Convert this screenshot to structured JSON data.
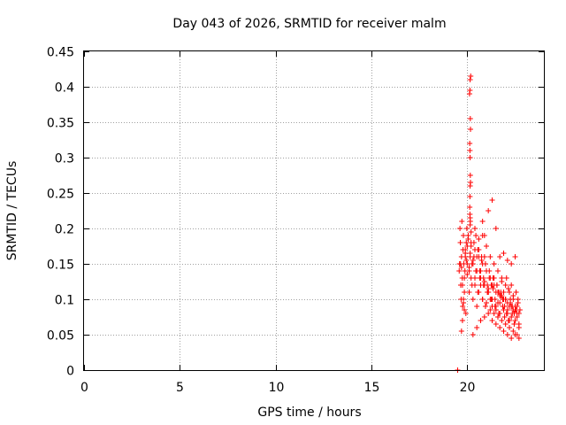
{
  "chart_data": {
    "type": "scatter",
    "title": "Day 043 of 2026, SRMTID for receiver malm",
    "xlabel": "GPS time / hours",
    "ylabel": "SRMTID / TECUs",
    "xlim": [
      0,
      24
    ],
    "ylim": [
      0,
      0.45
    ],
    "xticks": [
      0,
      5,
      10,
      15,
      20
    ],
    "xtick_labels": [
      "0",
      "5",
      "10",
      "15",
      "20"
    ],
    "yticks": [
      0,
      0.05,
      0.1,
      0.15,
      0.2,
      0.25,
      0.3,
      0.35,
      0.4,
      0.45
    ],
    "ytick_labels": [
      "0",
      "0.05",
      "0.1",
      "0.15",
      "0.2",
      "0.25",
      "0.3",
      "0.35",
      "0.4",
      "0.45"
    ],
    "grid": true,
    "marker": "+",
    "color": "#ff0000",
    "series": [
      {
        "name": "SRMTID",
        "x": [
          19.58,
          19.6,
          19.62,
          19.64,
          19.66,
          19.68,
          19.7,
          19.72,
          19.74,
          19.76,
          19.78,
          19.8,
          19.82,
          19.85,
          19.88,
          19.9,
          19.93,
          19.95,
          19.98,
          20.0,
          19.7,
          19.75,
          19.8,
          19.85,
          19.9,
          19.65,
          19.7,
          19.75,
          19.8,
          19.85,
          19.9,
          19.95,
          20.0,
          20.05,
          20.1,
          20.15,
          20.2,
          20.25,
          20.3,
          20.35,
          20.4,
          20.45,
          20.5,
          20.55,
          20.6,
          20.65,
          20.7,
          20.75,
          20.8,
          20.85,
          20.9,
          20.95,
          21.0,
          21.05,
          21.1,
          21.15,
          21.2,
          21.25,
          21.3,
          21.35,
          21.4,
          21.45,
          21.5,
          21.55,
          21.6,
          21.65,
          21.7,
          21.75,
          21.8,
          21.85,
          21.9,
          21.95,
          22.0,
          22.05,
          22.1,
          22.15,
          22.2,
          22.25,
          22.3,
          22.35,
          22.4,
          22.45,
          22.5,
          22.55,
          22.6,
          22.65,
          22.7,
          22.75,
          20.0,
          20.05,
          20.1,
          20.15,
          20.2,
          20.3,
          20.4,
          20.5,
          20.6,
          20.7,
          20.8,
          20.9,
          21.0,
          21.1,
          21.2,
          21.3,
          21.4,
          21.5,
          21.6,
          21.7,
          21.8,
          21.9,
          22.0,
          22.1,
          22.2,
          22.3,
          22.4,
          22.5,
          22.6,
          22.7,
          20.1,
          20.2,
          20.3,
          20.4,
          20.5,
          20.6,
          20.7,
          20.8,
          20.9,
          21.0,
          21.1,
          21.2,
          21.3,
          21.4,
          21.5,
          21.6,
          21.7,
          21.8,
          21.9,
          22.0,
          22.1,
          22.2,
          22.3,
          22.4,
          22.5,
          22.6,
          22.7,
          20.2,
          20.4,
          20.6,
          20.8,
          21.0,
          21.2,
          21.4,
          21.6,
          21.8,
          22.0,
          22.2,
          22.4,
          22.6,
          20.3,
          20.5,
          20.7,
          20.9,
          21.1,
          21.3,
          21.5,
          21.7,
          21.9,
          22.1,
          22.3,
          22.5,
          22.7,
          20.15,
          20.18,
          20.12,
          20.14,
          20.16,
          20.17,
          20.13,
          20.15,
          20.14,
          20.16,
          20.15,
          20.13,
          20.17,
          20.14,
          20.16,
          20.15,
          20.14,
          20.15,
          20.8,
          20.9,
          21.1,
          21.3,
          21.5,
          21.7,
          21.9,
          22.1,
          22.3,
          22.5,
          20.25,
          20.35,
          20.45,
          20.55,
          20.65,
          20.75,
          20.85,
          20.95,
          21.05,
          21.15,
          21.25,
          21.35,
          21.45,
          21.55,
          21.65,
          21.75,
          21.85,
          21.95,
          22.05,
          22.15,
          22.25,
          22.35,
          22.45,
          22.55,
          22.65,
          19.5
        ],
        "y": [
          0.14,
          0.15,
          0.2,
          0.18,
          0.12,
          0.1,
          0.16,
          0.21,
          0.13,
          0.09,
          0.17,
          0.19,
          0.15,
          0.11,
          0.14,
          0.16,
          0.08,
          0.18,
          0.2,
          0.15,
          0.055,
          0.07,
          0.1,
          0.13,
          0.165,
          0.15,
          0.145,
          0.12,
          0.095,
          0.085,
          0.17,
          0.155,
          0.135,
          0.185,
          0.14,
          0.16,
          0.175,
          0.12,
          0.15,
          0.18,
          0.13,
          0.19,
          0.16,
          0.11,
          0.17,
          0.14,
          0.12,
          0.155,
          0.1,
          0.13,
          0.16,
          0.09,
          0.14,
          0.12,
          0.11,
          0.13,
          0.1,
          0.12,
          0.09,
          0.115,
          0.13,
          0.1,
          0.085,
          0.12,
          0.095,
          0.11,
          0.08,
          0.105,
          0.125,
          0.09,
          0.11,
          0.075,
          0.1,
          0.13,
          0.085,
          0.115,
          0.07,
          0.095,
          0.12,
          0.08,
          0.105,
          0.065,
          0.09,
          0.11,
          0.075,
          0.1,
          0.06,
          0.085,
          0.175,
          0.19,
          0.145,
          0.165,
          0.18,
          0.155,
          0.17,
          0.14,
          0.16,
          0.13,
          0.15,
          0.12,
          0.14,
          0.11,
          0.13,
          0.1,
          0.12,
          0.09,
          0.11,
          0.095,
          0.105,
          0.085,
          0.1,
          0.08,
          0.09,
          0.075,
          0.085,
          0.07,
          0.08,
          0.065,
          0.11,
          0.13,
          0.1,
          0.12,
          0.09,
          0.11,
          0.14,
          0.1,
          0.125,
          0.095,
          0.115,
          0.085,
          0.12,
          0.08,
          0.11,
          0.075,
          0.105,
          0.07,
          0.1,
          0.065,
          0.095,
          0.06,
          0.09,
          0.055,
          0.085,
          0.05,
          0.08,
          0.195,
          0.2,
          0.185,
          0.19,
          0.175,
          0.16,
          0.15,
          0.14,
          0.13,
          0.12,
          0.11,
          0.1,
          0.09,
          0.05,
          0.06,
          0.07,
          0.075,
          0.08,
          0.07,
          0.065,
          0.06,
          0.055,
          0.05,
          0.045,
          0.05,
          0.045,
          0.41,
          0.415,
          0.39,
          0.395,
          0.355,
          0.34,
          0.32,
          0.3,
          0.31,
          0.275,
          0.26,
          0.23,
          0.265,
          0.245,
          0.21,
          0.205,
          0.22,
          0.215,
          0.21,
          0.19,
          0.225,
          0.24,
          0.2,
          0.16,
          0.165,
          0.155,
          0.15,
          0.16,
          0.15,
          0.16,
          0.14,
          0.17,
          0.13,
          0.16,
          0.12,
          0.15,
          0.11,
          0.14,
          0.1,
          0.13,
          0.09,
          0.12,
          0.08,
          0.11,
          0.1,
          0.09,
          0.08,
          0.07,
          0.1,
          0.09,
          0.08,
          0.085,
          0.095,
          0.0
        ]
      }
    ]
  }
}
